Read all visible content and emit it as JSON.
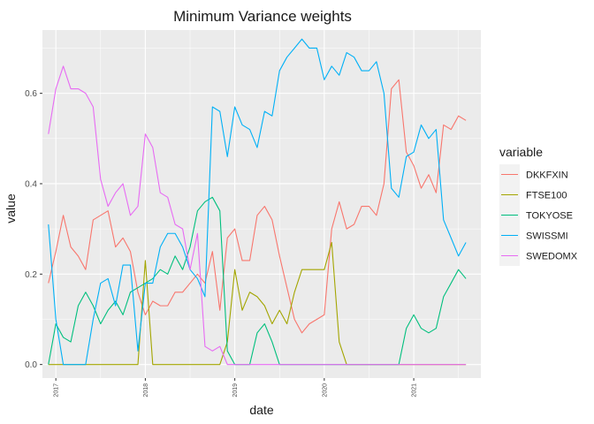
{
  "chart_data": {
    "type": "line",
    "title": "Minimum Variance weights",
    "xlabel": "date",
    "ylabel": "value",
    "legend_title": "variable",
    "legend_position": "right",
    "grid": true,
    "xlim": [
      2016.85,
      2021.75
    ],
    "ylim": [
      -0.03,
      0.74
    ],
    "x_ticks": [
      "2017",
      "2018",
      "2019",
      "2020",
      "2021"
    ],
    "y_ticks": [
      "0.0",
      "0.2",
      "0.4",
      "0.6"
    ],
    "x": [
      2016.917,
      2017.0,
      2017.083,
      2017.167,
      2017.25,
      2017.333,
      2017.417,
      2017.5,
      2017.583,
      2017.667,
      2017.75,
      2017.833,
      2017.917,
      2018.0,
      2018.083,
      2018.167,
      2018.25,
      2018.333,
      2018.417,
      2018.5,
      2018.583,
      2018.667,
      2018.75,
      2018.833,
      2018.917,
      2019.0,
      2019.083,
      2019.167,
      2019.25,
      2019.333,
      2019.417,
      2019.5,
      2019.583,
      2019.667,
      2019.75,
      2019.833,
      2019.917,
      2020.0,
      2020.083,
      2020.167,
      2020.25,
      2020.333,
      2020.417,
      2020.5,
      2020.583,
      2020.667,
      2020.75,
      2020.833,
      2020.917,
      2021.0,
      2021.083,
      2021.167,
      2021.25,
      2021.333,
      2021.417,
      2021.5,
      2021.583
    ],
    "series": [
      {
        "name": "DKKFXIN",
        "color": "#F8766D",
        "values": [
          0.18,
          0.25,
          0.33,
          0.26,
          0.24,
          0.21,
          0.32,
          0.33,
          0.34,
          0.26,
          0.28,
          0.25,
          0.16,
          0.11,
          0.14,
          0.13,
          0.13,
          0.16,
          0.16,
          0.18,
          0.2,
          0.18,
          0.25,
          0.12,
          0.28,
          0.3,
          0.23,
          0.23,
          0.33,
          0.35,
          0.32,
          0.24,
          0.17,
          0.1,
          0.07,
          0.09,
          0.1,
          0.11,
          0.3,
          0.36,
          0.3,
          0.31,
          0.35,
          0.35,
          0.33,
          0.4,
          0.61,
          0.63,
          0.47,
          0.44,
          0.39,
          0.42,
          0.38,
          0.53,
          0.52,
          0.55,
          0.54
        ]
      },
      {
        "name": "FTSE100",
        "color": "#A3A500",
        "values": [
          0.0,
          0.0,
          0.0,
          0.0,
          0.0,
          0.0,
          0.0,
          0.0,
          0.0,
          0.0,
          0.0,
          0.0,
          0.0,
          0.23,
          0.0,
          0.0,
          0.0,
          0.0,
          0.0,
          0.0,
          0.0,
          0.0,
          0.0,
          0.0,
          0.05,
          0.21,
          0.12,
          0.16,
          0.15,
          0.13,
          0.09,
          0.12,
          0.09,
          0.16,
          0.21,
          0.21,
          0.21,
          0.21,
          0.27,
          0.05,
          0.0,
          0.0,
          0.0,
          0.0,
          0.0,
          0.0,
          0.0,
          0.0,
          0.0,
          0.0,
          0.0,
          0.0,
          0.0,
          0.0,
          0.0,
          0.0,
          0.0
        ]
      },
      {
        "name": "TOKYOSE",
        "color": "#00BF7D",
        "values": [
          0.0,
          0.09,
          0.06,
          0.05,
          0.13,
          0.16,
          0.13,
          0.09,
          0.12,
          0.14,
          0.11,
          0.16,
          0.17,
          0.18,
          0.19,
          0.21,
          0.2,
          0.24,
          0.21,
          0.26,
          0.34,
          0.36,
          0.37,
          0.34,
          0.03,
          0.0,
          0.0,
          0.0,
          0.07,
          0.09,
          0.05,
          0.0,
          0.0,
          0.0,
          0.0,
          0.0,
          0.0,
          0.0,
          0.0,
          0.0,
          0.0,
          0.0,
          0.0,
          0.0,
          0.0,
          0.0,
          0.0,
          0.0,
          0.08,
          0.11,
          0.08,
          0.07,
          0.08,
          0.15,
          0.18,
          0.21,
          0.19
        ]
      },
      {
        "name": "SWISSMI",
        "color": "#00B0F6",
        "values": [
          0.31,
          0.1,
          0.0,
          0.0,
          0.0,
          0.0,
          0.1,
          0.18,
          0.19,
          0.13,
          0.22,
          0.22,
          0.03,
          0.18,
          0.18,
          0.26,
          0.29,
          0.29,
          0.26,
          0.21,
          0.19,
          0.15,
          0.57,
          0.56,
          0.46,
          0.57,
          0.53,
          0.52,
          0.48,
          0.56,
          0.55,
          0.65,
          0.68,
          0.7,
          0.72,
          0.7,
          0.7,
          0.63,
          0.66,
          0.64,
          0.69,
          0.68,
          0.65,
          0.65,
          0.67,
          0.6,
          0.39,
          0.37,
          0.46,
          0.47,
          0.53,
          0.5,
          0.52,
          0.32,
          0.28,
          0.24,
          0.27
        ]
      },
      {
        "name": "SWEDOMX",
        "color": "#E76BF3",
        "values": [
          0.51,
          0.61,
          0.66,
          0.61,
          0.61,
          0.6,
          0.57,
          0.41,
          0.35,
          0.38,
          0.4,
          0.33,
          0.35,
          0.51,
          0.48,
          0.38,
          0.37,
          0.31,
          0.3,
          0.21,
          0.29,
          0.04,
          0.03,
          0.04,
          0.0,
          0.0,
          0.0,
          0.0,
          0.0,
          0.0,
          0.0,
          0.0,
          0.0,
          0.0,
          0.0,
          0.0,
          0.0,
          0.0,
          0.0,
          0.0,
          0.0,
          0.0,
          0.0,
          0.0,
          0.0,
          0.0,
          0.0,
          0.0,
          0.0,
          0.0,
          0.0,
          0.0,
          0.0,
          0.0,
          0.0,
          0.0,
          0.0
        ]
      }
    ]
  }
}
